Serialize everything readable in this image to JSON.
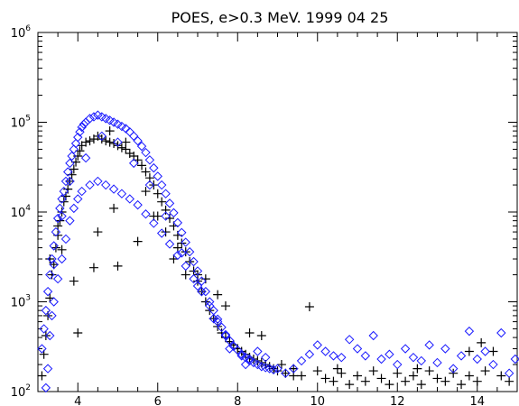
{
  "chart_data": {
    "type": "scatter",
    "title": "POES, e>0.3 MeV. 1999 04 25",
    "xlabel": "",
    "ylabel": "",
    "xlim": [
      3.0,
      15.0
    ],
    "ylim": [
      100,
      1000000
    ],
    "y_scale": "log",
    "grid": false,
    "x_ticks": [
      4,
      6,
      8,
      10,
      12,
      14
    ],
    "y_ticks": [
      {
        "value": 100,
        "base": "10",
        "exp": "2"
      },
      {
        "value": 1000,
        "base": "10",
        "exp": "3"
      },
      {
        "value": 10000,
        "base": "10",
        "exp": "4"
      },
      {
        "value": 100000,
        "base": "10",
        "exp": "5"
      },
      {
        "value": 1000000,
        "base": "10",
        "exp": "6"
      }
    ],
    "series": [
      {
        "marker": "plus",
        "color": "#000000",
        "points": [
          [
            3.1,
            150
          ],
          [
            3.15,
            260
          ],
          [
            3.2,
            420
          ],
          [
            3.25,
            700
          ],
          [
            3.3,
            1100
          ],
          [
            3.35,
            2000
          ],
          [
            3.4,
            2600
          ],
          [
            3.45,
            4000
          ],
          [
            3.5,
            5500
          ],
          [
            3.55,
            8000
          ],
          [
            3.6,
            10000
          ],
          [
            3.65,
            13000
          ],
          [
            3.7,
            15000
          ],
          [
            3.75,
            18000
          ],
          [
            3.8,
            22000
          ],
          [
            3.85,
            26000
          ],
          [
            3.9,
            30000
          ],
          [
            3.95,
            36000
          ],
          [
            4.0,
            42000
          ],
          [
            4.05,
            48000
          ],
          [
            4.1,
            55000
          ],
          [
            4.2,
            60000
          ],
          [
            4.3,
            62000
          ],
          [
            4.4,
            65000
          ],
          [
            4.5,
            70000
          ],
          [
            4.6,
            65000
          ],
          [
            4.7,
            62000
          ],
          [
            4.8,
            60000
          ],
          [
            4.9,
            58000
          ],
          [
            5.0,
            55000
          ],
          [
            5.1,
            52000
          ],
          [
            5.2,
            50000
          ],
          [
            5.3,
            45000
          ],
          [
            5.4,
            42000
          ],
          [
            5.5,
            38000
          ],
          [
            5.6,
            33000
          ],
          [
            5.7,
            28000
          ],
          [
            5.8,
            24000
          ],
          [
            5.9,
            20000
          ],
          [
            6.0,
            16000
          ],
          [
            6.1,
            13000
          ],
          [
            6.2,
            10500
          ],
          [
            6.3,
            8500
          ],
          [
            6.4,
            7000
          ],
          [
            6.5,
            5500
          ],
          [
            6.6,
            4500
          ],
          [
            6.7,
            3600
          ],
          [
            6.8,
            2800
          ],
          [
            6.9,
            2200
          ],
          [
            7.0,
            1700
          ],
          [
            7.1,
            1300
          ],
          [
            7.2,
            1000
          ],
          [
            7.3,
            800
          ],
          [
            7.4,
            650
          ],
          [
            7.5,
            530
          ],
          [
            7.6,
            450
          ],
          [
            7.7,
            400
          ],
          [
            7.8,
            360
          ],
          [
            7.9,
            330
          ],
          [
            8.0,
            300
          ],
          [
            8.1,
            280
          ],
          [
            8.2,
            260
          ],
          [
            8.3,
            240
          ],
          [
            8.4,
            230
          ],
          [
            8.5,
            220
          ],
          [
            8.6,
            210
          ],
          [
            8.7,
            200
          ],
          [
            8.8,
            190
          ],
          [
            8.9,
            180
          ],
          [
            9.0,
            170
          ],
          [
            9.2,
            160
          ],
          [
            9.4,
            150
          ],
          [
            9.6,
            150
          ],
          [
            9.8,
            880
          ],
          [
            10.0,
            170
          ],
          [
            10.2,
            140
          ],
          [
            10.4,
            130
          ],
          [
            10.6,
            160
          ],
          [
            10.8,
            120
          ],
          [
            11.0,
            150
          ],
          [
            11.2,
            130
          ],
          [
            11.4,
            170
          ],
          [
            11.6,
            140
          ],
          [
            11.8,
            120
          ],
          [
            12.0,
            160
          ],
          [
            12.2,
            130
          ],
          [
            12.4,
            150
          ],
          [
            12.6,
            120
          ],
          [
            12.8,
            170
          ],
          [
            13.0,
            140
          ],
          [
            13.2,
            130
          ],
          [
            13.4,
            160
          ],
          [
            13.6,
            120
          ],
          [
            13.8,
            150
          ],
          [
            14.0,
            130
          ],
          [
            14.2,
            170
          ],
          [
            14.4,
            280
          ],
          [
            14.6,
            150
          ],
          [
            14.8,
            130
          ],
          [
            3.6,
            3800
          ],
          [
            3.9,
            1700
          ],
          [
            4.0,
            450
          ],
          [
            4.4,
            2400
          ],
          [
            4.5,
            6000
          ],
          [
            4.9,
            11000
          ],
          [
            5.0,
            2500
          ],
          [
            5.5,
            4700
          ],
          [
            5.9,
            9000
          ],
          [
            6.2,
            6000
          ],
          [
            6.5,
            4000
          ],
          [
            7.0,
            2000
          ],
          [
            7.2,
            1800
          ],
          [
            7.5,
            1200
          ],
          [
            7.7,
            900
          ],
          [
            8.3,
            450
          ],
          [
            8.6,
            420
          ],
          [
            9.1,
            200
          ],
          [
            9.4,
            180
          ],
          [
            10.5,
            180
          ],
          [
            12.5,
            180
          ],
          [
            13.8,
            280
          ],
          [
            14.1,
            350
          ],
          [
            3.3,
            3000
          ],
          [
            3.5,
            7000
          ],
          [
            4.8,
            80000
          ],
          [
            5.2,
            60000
          ],
          [
            5.7,
            17000
          ],
          [
            6.0,
            9000
          ],
          [
            6.4,
            3000
          ],
          [
            6.7,
            2000
          ]
        ]
      },
      {
        "marker": "diamond",
        "color": "#1a1aff",
        "points": [
          [
            3.1,
            300
          ],
          [
            3.15,
            500
          ],
          [
            3.2,
            800
          ],
          [
            3.25,
            1300
          ],
          [
            3.3,
            2000
          ],
          [
            3.35,
            3000
          ],
          [
            3.4,
            4200
          ],
          [
            3.45,
            6000
          ],
          [
            3.5,
            8500
          ],
          [
            3.55,
            11000
          ],
          [
            3.6,
            14000
          ],
          [
            3.65,
            17000
          ],
          [
            3.7,
            22000
          ],
          [
            3.75,
            28000
          ],
          [
            3.8,
            35000
          ],
          [
            3.85,
            42000
          ],
          [
            3.9,
            50000
          ],
          [
            3.95,
            58000
          ],
          [
            4.0,
            68000
          ],
          [
            4.05,
            78000
          ],
          [
            4.1,
            88000
          ],
          [
            4.15,
            95000
          ],
          [
            4.2,
            100000
          ],
          [
            4.3,
            110000
          ],
          [
            4.4,
            115000
          ],
          [
            4.5,
            120000
          ],
          [
            4.6,
            115000
          ],
          [
            4.7,
            110000
          ],
          [
            4.8,
            105000
          ],
          [
            4.9,
            100000
          ],
          [
            5.0,
            95000
          ],
          [
            5.1,
            90000
          ],
          [
            5.2,
            85000
          ],
          [
            5.3,
            78000
          ],
          [
            5.4,
            70000
          ],
          [
            5.5,
            62000
          ],
          [
            5.6,
            54000
          ],
          [
            5.7,
            46000
          ],
          [
            5.8,
            38000
          ],
          [
            5.9,
            31000
          ],
          [
            6.0,
            25000
          ],
          [
            6.1,
            20000
          ],
          [
            6.2,
            16000
          ],
          [
            6.3,
            12500
          ],
          [
            6.4,
            9800
          ],
          [
            6.5,
            7600
          ],
          [
            6.6,
            5900
          ],
          [
            6.7,
            4600
          ],
          [
            6.8,
            3600
          ],
          [
            6.9,
            2800
          ],
          [
            7.0,
            2200
          ],
          [
            7.1,
            1700
          ],
          [
            7.2,
            1300
          ],
          [
            7.3,
            1000
          ],
          [
            7.4,
            800
          ],
          [
            7.5,
            640
          ],
          [
            7.6,
            520
          ],
          [
            7.7,
            430
          ],
          [
            7.8,
            370
          ],
          [
            7.9,
            320
          ],
          [
            8.0,
            290
          ],
          [
            8.1,
            260
          ],
          [
            8.2,
            240
          ],
          [
            8.3,
            220
          ],
          [
            8.4,
            210
          ],
          [
            8.5,
            200
          ],
          [
            8.6,
            190
          ],
          [
            8.7,
            185
          ],
          [
            8.8,
            180
          ],
          [
            8.9,
            175
          ],
          [
            9.0,
            180
          ],
          [
            9.2,
            160
          ],
          [
            9.4,
            180
          ],
          [
            9.6,
            220
          ],
          [
            9.8,
            260
          ],
          [
            10.0,
            330
          ],
          [
            10.2,
            280
          ],
          [
            10.4,
            250
          ],
          [
            10.6,
            240
          ],
          [
            10.8,
            380
          ],
          [
            11.0,
            300
          ],
          [
            11.2,
            250
          ],
          [
            11.4,
            420
          ],
          [
            11.6,
            230
          ],
          [
            11.8,
            260
          ],
          [
            12.0,
            200
          ],
          [
            12.2,
            300
          ],
          [
            12.4,
            240
          ],
          [
            12.6,
            220
          ],
          [
            12.8,
            330
          ],
          [
            13.0,
            210
          ],
          [
            13.2,
            300
          ],
          [
            13.4,
            180
          ],
          [
            13.6,
            250
          ],
          [
            13.8,
            470
          ],
          [
            14.0,
            230
          ],
          [
            14.2,
            280
          ],
          [
            14.4,
            200
          ],
          [
            14.6,
            450
          ],
          [
            14.8,
            160
          ],
          [
            14.95,
            230
          ],
          [
            3.2,
            110
          ],
          [
            3.25,
            180
          ],
          [
            3.3,
            420
          ],
          [
            3.35,
            700
          ],
          [
            3.4,
            1000
          ],
          [
            3.5,
            1800
          ],
          [
            3.6,
            3000
          ],
          [
            3.7,
            5000
          ],
          [
            3.8,
            8000
          ],
          [
            3.9,
            11000
          ],
          [
            4.0,
            14000
          ],
          [
            4.1,
            17000
          ],
          [
            4.3,
            20000
          ],
          [
            4.5,
            22000
          ],
          [
            4.7,
            20000
          ],
          [
            4.9,
            18000
          ],
          [
            5.1,
            16000
          ],
          [
            5.3,
            14000
          ],
          [
            5.5,
            12000
          ],
          [
            5.7,
            9500
          ],
          [
            5.9,
            7500
          ],
          [
            6.1,
            5800
          ],
          [
            6.3,
            4400
          ],
          [
            6.5,
            3300
          ],
          [
            6.7,
            2500
          ],
          [
            6.9,
            1800
          ],
          [
            7.1,
            1300
          ],
          [
            7.3,
            900
          ],
          [
            7.5,
            600
          ],
          [
            7.7,
            420
          ],
          [
            7.9,
            320
          ],
          [
            8.1,
            250
          ],
          [
            8.3,
            230
          ],
          [
            8.5,
            280
          ],
          [
            8.7,
            240
          ],
          [
            3.4,
            2600
          ],
          [
            3.6,
            9000
          ],
          [
            3.8,
            22000
          ],
          [
            4.2,
            40000
          ],
          [
            4.6,
            70000
          ],
          [
            5.0,
            60000
          ],
          [
            5.4,
            35000
          ],
          [
            5.8,
            20000
          ],
          [
            6.2,
            9000
          ],
          [
            6.6,
            3500
          ],
          [
            7.0,
            1500
          ],
          [
            7.4,
            650
          ],
          [
            7.8,
            300
          ],
          [
            8.2,
            200
          ]
        ]
      }
    ]
  }
}
